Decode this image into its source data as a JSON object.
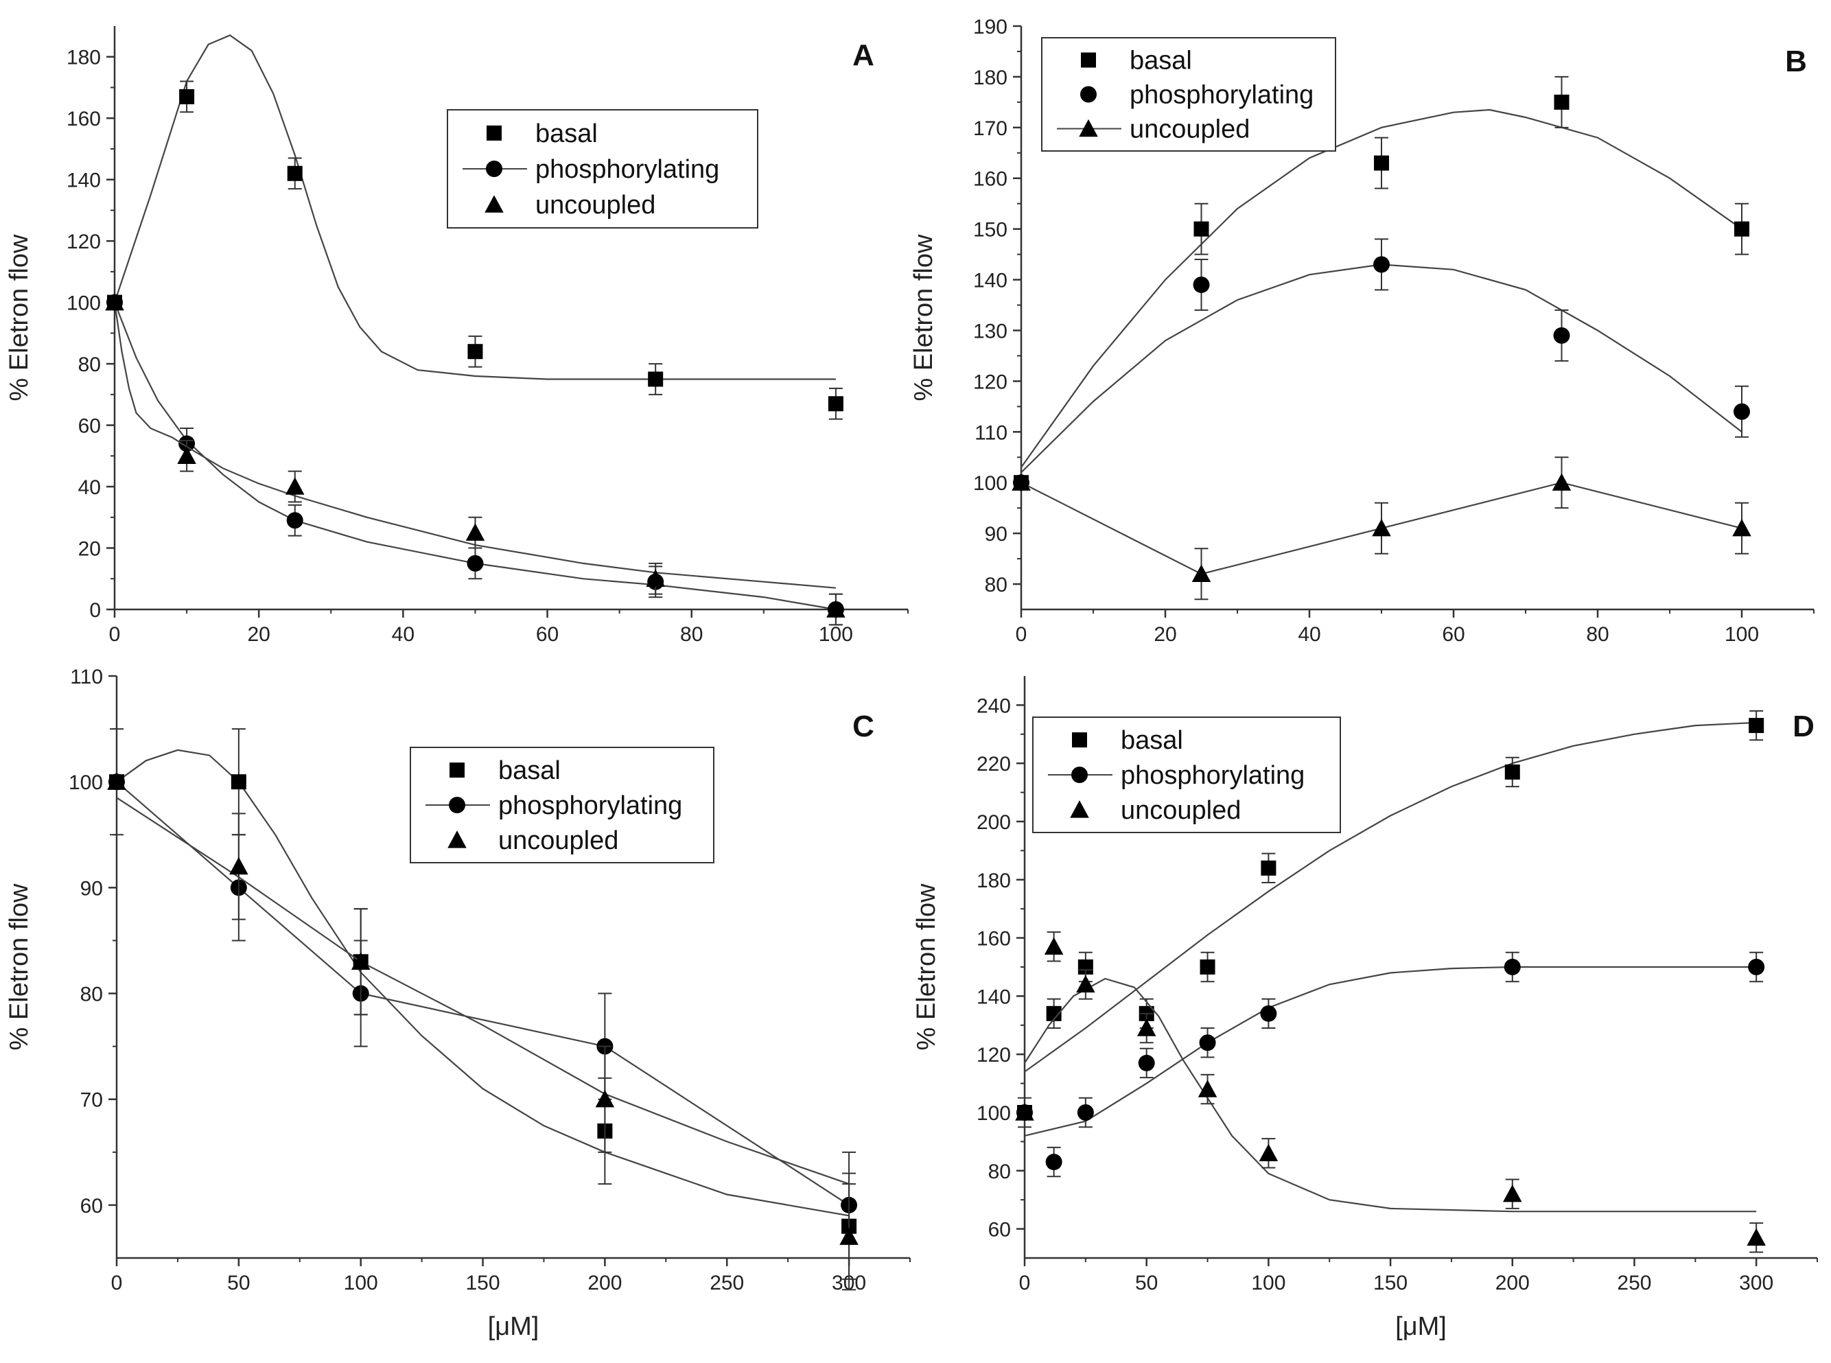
{
  "chart_data": [
    {
      "type": "scatter",
      "panel_label": "A",
      "ylabel": "% Eletron flow",
      "xlabel": "",
      "xlim": [
        0,
        110
      ],
      "ylim": [
        0,
        190
      ],
      "xticks": [
        0,
        20,
        40,
        60,
        80,
        100
      ],
      "yticks": [
        0,
        20,
        40,
        60,
        80,
        100,
        120,
        140,
        160,
        180
      ],
      "legend_position": "top-center",
      "series": [
        {
          "name": "basal",
          "marker": "square",
          "points": [
            [
              0,
              100,
              0
            ],
            [
              10,
              167,
              5
            ],
            [
              25,
              142,
              5
            ],
            [
              50,
              84,
              5
            ],
            [
              75,
              75,
              5
            ],
            [
              100,
              67,
              5
            ]
          ],
          "fit": [
            [
              0,
              100
            ],
            [
              5,
              135
            ],
            [
              10,
              172
            ],
            [
              13,
              184
            ],
            [
              16,
              187
            ],
            [
              19,
              182
            ],
            [
              22,
              168
            ],
            [
              25,
              148
            ],
            [
              28,
              125
            ],
            [
              31,
              105
            ],
            [
              34,
              92
            ],
            [
              37,
              84
            ],
            [
              42,
              78
            ],
            [
              50,
              76
            ],
            [
              60,
              75
            ],
            [
              80,
              75
            ],
            [
              100,
              75
            ]
          ]
        },
        {
          "name": "phosphorylating",
          "marker": "circle",
          "points": [
            [
              0,
              100,
              0
            ],
            [
              10,
              54,
              5
            ],
            [
              25,
              29,
              5
            ],
            [
              50,
              15,
              5
            ],
            [
              75,
              9,
              5
            ],
            [
              100,
              0,
              5
            ]
          ],
          "fit": [
            [
              0,
              100
            ],
            [
              3,
              82
            ],
            [
              6,
              68
            ],
            [
              10,
              55
            ],
            [
              15,
              44
            ],
            [
              20,
              35
            ],
            [
              25,
              29
            ],
            [
              35,
              22
            ],
            [
              50,
              15
            ],
            [
              65,
              10
            ],
            [
              75,
              8
            ],
            [
              90,
              4
            ],
            [
              100,
              0
            ]
          ]
        },
        {
          "name": "uncoupled",
          "marker": "triangle",
          "points": [
            [
              0,
              100,
              0
            ],
            [
              10,
              50,
              5
            ],
            [
              25,
              40,
              5
            ],
            [
              50,
              25,
              5
            ],
            [
              75,
              10,
              5
            ],
            [
              100,
              0,
              5
            ]
          ],
          "fit": [
            [
              0,
              100
            ],
            [
              1,
              84
            ],
            [
              2,
              72
            ],
            [
              3,
              64
            ],
            [
              5,
              59
            ],
            [
              8,
              56
            ],
            [
              10,
              53
            ],
            [
              15,
              46
            ],
            [
              20,
              41
            ],
            [
              25,
              37
            ],
            [
              35,
              30
            ],
            [
              50,
              21
            ],
            [
              65,
              15
            ],
            [
              75,
              12
            ],
            [
              90,
              9
            ],
            [
              100,
              7
            ]
          ]
        }
      ]
    },
    {
      "type": "scatter",
      "panel_label": "B",
      "ylabel": "% Eletron flow",
      "xlabel": "",
      "xlim": [
        0,
        110
      ],
      "ylim": [
        75,
        190
      ],
      "xticks": [
        0,
        20,
        40,
        60,
        80,
        100
      ],
      "yticks": [
        80,
        90,
        100,
        110,
        120,
        130,
        140,
        150,
        160,
        170,
        180,
        190
      ],
      "legend_position": "top-left",
      "series": [
        {
          "name": "basal",
          "marker": "square",
          "points": [
            [
              0,
              100,
              0
            ],
            [
              25,
              150,
              5
            ],
            [
              50,
              163,
              5
            ],
            [
              75,
              175,
              5
            ],
            [
              100,
              150,
              5
            ]
          ],
          "fit": [
            [
              0,
              103
            ],
            [
              10,
              123
            ],
            [
              20,
              140
            ],
            [
              30,
              154
            ],
            [
              40,
              164
            ],
            [
              50,
              170
            ],
            [
              60,
              173
            ],
            [
              65,
              173.5
            ],
            [
              70,
              172
            ],
            [
              80,
              168
            ],
            [
              90,
              160
            ],
            [
              100,
              150
            ]
          ]
        },
        {
          "name": "phosphorylating",
          "marker": "circle",
          "points": [
            [
              0,
              100,
              0
            ],
            [
              25,
              139,
              5
            ],
            [
              50,
              143,
              5
            ],
            [
              75,
              129,
              5
            ],
            [
              100,
              114,
              5
            ]
          ],
          "fit": [
            [
              0,
              102
            ],
            [
              10,
              116
            ],
            [
              20,
              128
            ],
            [
              30,
              136
            ],
            [
              40,
              141
            ],
            [
              50,
              143
            ],
            [
              60,
              142
            ],
            [
              70,
              138
            ],
            [
              80,
              130
            ],
            [
              90,
              121
            ],
            [
              100,
              110
            ]
          ]
        },
        {
          "name": "uncoupled",
          "marker": "triangle",
          "points": [
            [
              0,
              100,
              0
            ],
            [
              25,
              82,
              5
            ],
            [
              50,
              91,
              5
            ],
            [
              75,
              100,
              5
            ],
            [
              100,
              91,
              5
            ]
          ],
          "fit": [
            [
              0,
              100
            ],
            [
              25,
              82
            ],
            [
              50,
              91
            ],
            [
              75,
              100
            ],
            [
              100,
              91
            ]
          ]
        }
      ]
    },
    {
      "type": "scatter",
      "panel_label": "C",
      "ylabel": "% Eletron flow",
      "xlabel": "[μM]",
      "xlim": [
        0,
        325
      ],
      "ylim": [
        55,
        110
      ],
      "xticks": [
        0,
        50,
        100,
        150,
        200,
        250,
        300
      ],
      "yticks": [
        60,
        70,
        80,
        90,
        100,
        110
      ],
      "legend_position": "top-center",
      "series": [
        {
          "name": "basal",
          "marker": "square",
          "points": [
            [
              0,
              100,
              5
            ],
            [
              50,
              100,
              5
            ],
            [
              100,
              83,
              5
            ],
            [
              200,
              67,
              5
            ],
            [
              300,
              58,
              5
            ]
          ],
          "fit": [
            [
              0,
              100
            ],
            [
              12,
              102
            ],
            [
              25,
              103
            ],
            [
              38,
              102.5
            ],
            [
              50,
              100
            ],
            [
              65,
              95
            ],
            [
              80,
              89
            ],
            [
              100,
              82
            ],
            [
              125,
              76
            ],
            [
              150,
              71
            ],
            [
              175,
              67.5
            ],
            [
              200,
              65
            ],
            [
              225,
              63
            ],
            [
              250,
              61
            ],
            [
              275,
              60
            ],
            [
              300,
              59
            ]
          ]
        },
        {
          "name": "phosphorylating",
          "marker": "circle",
          "points": [
            [
              0,
              100,
              0
            ],
            [
              50,
              90,
              5
            ],
            [
              100,
              80,
              5
            ],
            [
              200,
              75,
              5
            ],
            [
              300,
              60,
              5
            ]
          ],
          "fit": [
            [
              0,
              100
            ],
            [
              50,
              90
            ],
            [
              100,
              80
            ],
            [
              200,
              75
            ],
            [
              300,
              60
            ]
          ]
        },
        {
          "name": "uncoupled",
          "marker": "triangle",
          "points": [
            [
              0,
              100,
              0
            ],
            [
              50,
              92,
              5
            ],
            [
              100,
              83,
              5
            ],
            [
              200,
              70,
              5
            ],
            [
              300,
              57,
              5
            ]
          ],
          "fit": [
            [
              0,
              98.5
            ],
            [
              50,
              91
            ],
            [
              100,
              83
            ],
            [
              150,
              77
            ],
            [
              200,
              70.5
            ],
            [
              250,
              66
            ],
            [
              300,
              62
            ]
          ]
        }
      ]
    },
    {
      "type": "scatter",
      "panel_label": "D",
      "ylabel": "% Eletron flow",
      "xlabel": "[μM]",
      "xlim": [
        0,
        325
      ],
      "ylim": [
        50,
        250
      ],
      "xticks": [
        0,
        50,
        100,
        150,
        200,
        250,
        300
      ],
      "yticks": [
        60,
        80,
        100,
        120,
        140,
        160,
        180,
        200,
        220,
        240
      ],
      "legend_position": "top-left",
      "series": [
        {
          "name": "basal",
          "marker": "square",
          "points": [
            [
              0,
              100,
              5
            ],
            [
              12,
              134,
              5
            ],
            [
              25,
              150,
              5
            ],
            [
              50,
              134,
              5
            ],
            [
              75,
              150,
              5
            ],
            [
              100,
              184,
              5
            ],
            [
              200,
              217,
              5
            ],
            [
              300,
              233,
              5
            ]
          ],
          "fit": [
            [
              0,
              114
            ],
            [
              25,
              129
            ],
            [
              50,
              145
            ],
            [
              75,
              161
            ],
            [
              100,
              176
            ],
            [
              125,
              190
            ],
            [
              150,
              202
            ],
            [
              175,
              212
            ],
            [
              200,
              220
            ],
            [
              225,
              226
            ],
            [
              250,
              230
            ],
            [
              275,
              233
            ],
            [
              300,
              234
            ]
          ]
        },
        {
          "name": "phosphorylating",
          "marker": "circle",
          "points": [
            [
              0,
              100,
              0
            ],
            [
              12,
              83,
              5
            ],
            [
              25,
              100,
              5
            ],
            [
              50,
              117,
              5
            ],
            [
              75,
              124,
              5
            ],
            [
              100,
              134,
              5
            ],
            [
              200,
              150,
              5
            ],
            [
              300,
              150,
              5
            ]
          ],
          "fit": [
            [
              0,
              92
            ],
            [
              25,
              97
            ],
            [
              50,
              110
            ],
            [
              75,
              124
            ],
            [
              100,
              136
            ],
            [
              125,
              144
            ],
            [
              150,
              148
            ],
            [
              175,
              149.5
            ],
            [
              200,
              150
            ],
            [
              250,
              150
            ],
            [
              300,
              150
            ]
          ]
        },
        {
          "name": "uncoupled",
          "marker": "triangle",
          "points": [
            [
              0,
              100,
              0
            ],
            [
              12,
              157,
              5
            ],
            [
              25,
              144,
              5
            ],
            [
              50,
              129,
              5
            ],
            [
              75,
              108,
              5
            ],
            [
              100,
              86,
              5
            ],
            [
              200,
              72,
              5
            ],
            [
              300,
              57,
              5
            ]
          ],
          "fit": [
            [
              0,
              117
            ],
            [
              10,
              130
            ],
            [
              20,
              140
            ],
            [
              33,
              146
            ],
            [
              45,
              143
            ],
            [
              55,
              133
            ],
            [
              65,
              118
            ],
            [
              75,
              105
            ],
            [
              85,
              92
            ],
            [
              100,
              79
            ],
            [
              125,
              70
            ],
            [
              150,
              67
            ],
            [
              200,
              66
            ],
            [
              250,
              66
            ],
            [
              300,
              66
            ]
          ]
        }
      ]
    }
  ]
}
